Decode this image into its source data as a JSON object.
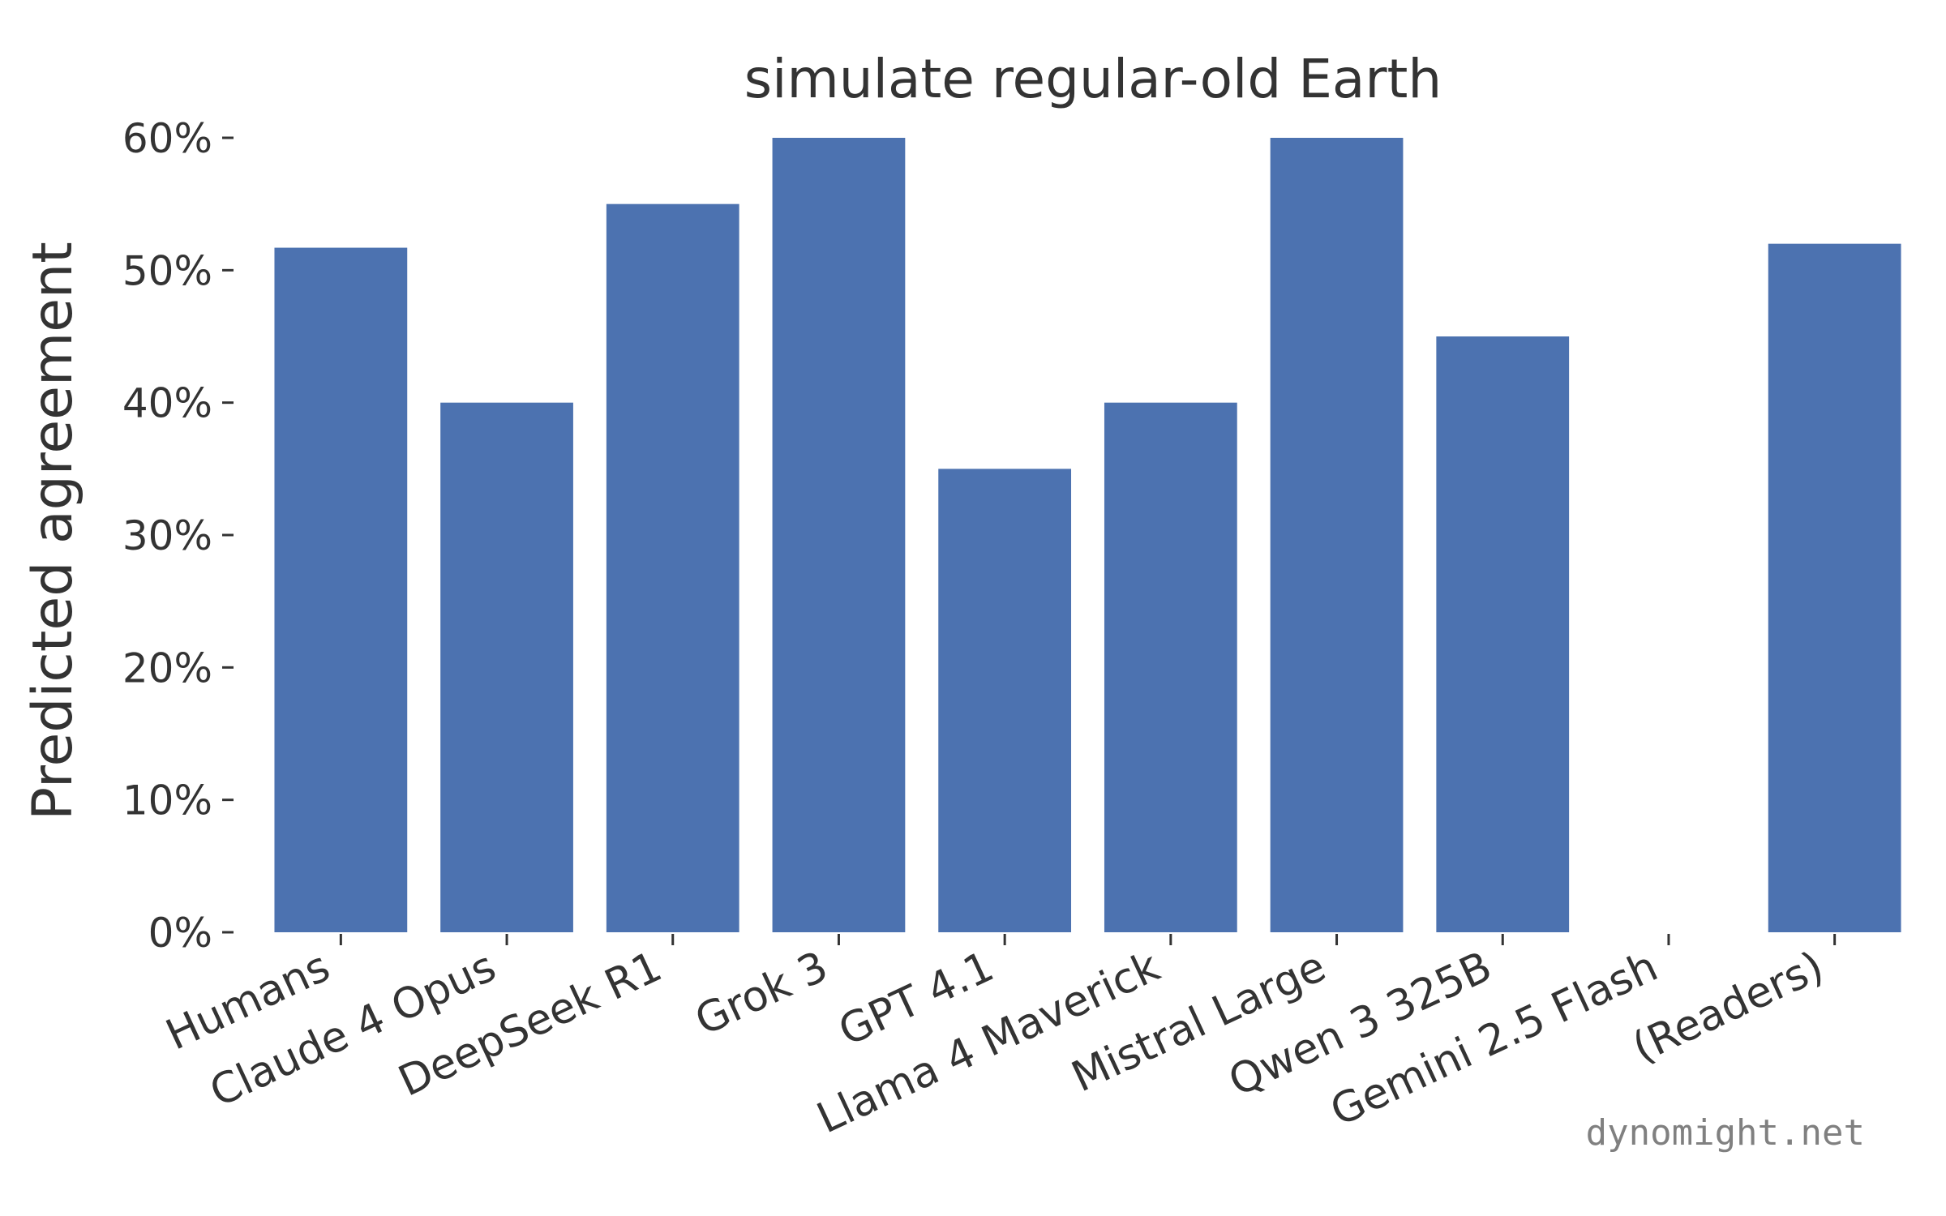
{
  "chart_data": {
    "type": "bar",
    "title": "simulate regular-old Earth",
    "xlabel": "",
    "ylabel": "Predicted agreement",
    "categories": [
      "Humans",
      "Claude 4 Opus",
      "DeepSeek R1",
      "Grok 3",
      "GPT 4.1",
      "Llama 4 Maverick",
      "Mistral Large",
      "Qwen 3 325B",
      "Gemini 2.5 Flash",
      "(Readers)"
    ],
    "values": [
      51.7,
      40,
      55,
      60,
      35,
      40,
      60,
      45,
      0,
      52
    ],
    "ylim": [
      0,
      60
    ],
    "yticks": [
      0,
      10,
      20,
      30,
      40,
      50,
      60
    ],
    "ytick_labels": [
      "0%",
      "10%",
      "20%",
      "30%",
      "40%",
      "50%",
      "60%"
    ],
    "bar_color": "#4c72b0",
    "grid": false,
    "legend": "none"
  },
  "watermark": "dynomight.net"
}
